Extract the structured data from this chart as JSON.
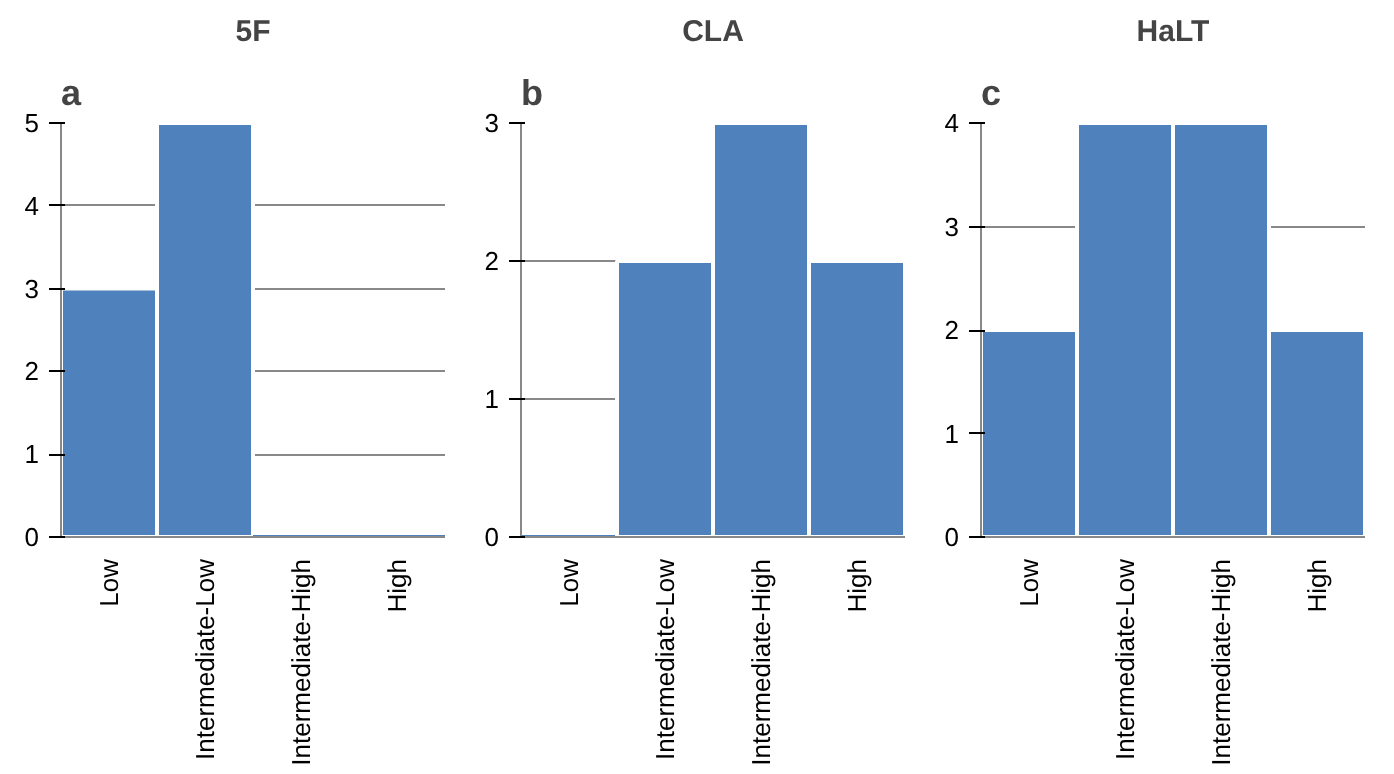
{
  "chart_data": [
    {
      "type": "bar",
      "title": "5F",
      "annotations": [
        "a"
      ],
      "categories": [
        "Low",
        "Intermediate-Low",
        "Intermediate-High",
        "High"
      ],
      "values": [
        3,
        5,
        0,
        0
      ],
      "color": "#4f81bd",
      "ylim": [
        0,
        5
      ],
      "yticks": [
        0,
        1,
        2,
        3,
        4,
        5
      ],
      "grid": "y"
    },
    {
      "type": "bar",
      "title": "CLA",
      "annotations": [
        "b"
      ],
      "categories": [
        "Low",
        "Intermediate-Low",
        "Intermediate-High",
        "High"
      ],
      "values": [
        0,
        2,
        3,
        2
      ],
      "color": "#4f81bd",
      "ylim": [
        0,
        3
      ],
      "yticks": [
        0,
        1,
        2,
        3
      ],
      "grid": "y"
    },
    {
      "type": "bar",
      "title": "HaLT",
      "annotations": [
        "c"
      ],
      "categories": [
        "Low",
        "Intermediate-Low",
        "Intermediate-High",
        "High"
      ],
      "values": [
        2,
        4,
        4,
        2
      ],
      "color": "#4f81bd",
      "ylim": [
        0,
        4
      ],
      "yticks": [
        0,
        1,
        2,
        3,
        4
      ],
      "grid": "y"
    }
  ]
}
